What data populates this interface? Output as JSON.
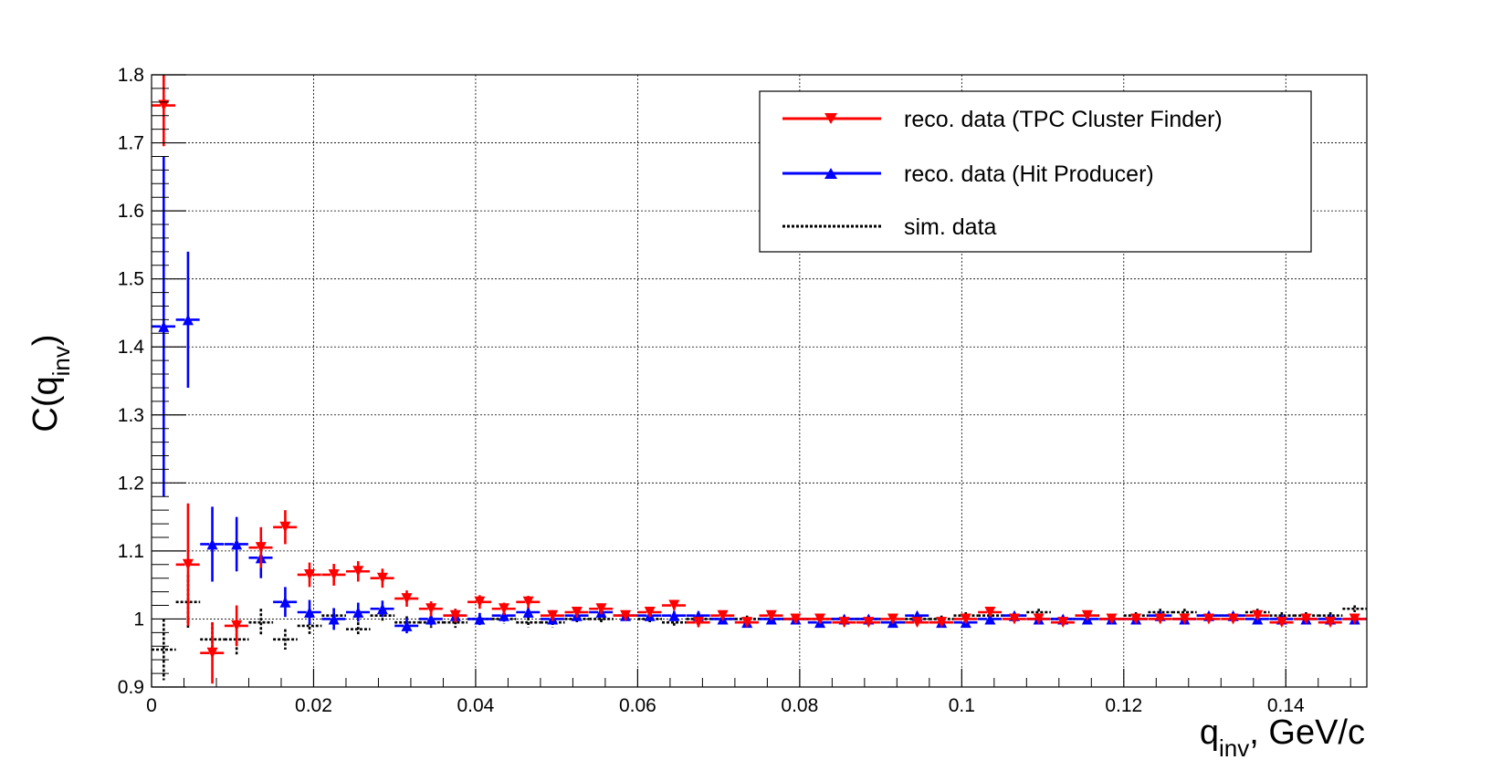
{
  "chart_data": {
    "type": "scatter",
    "xlabel": {
      "main": "q",
      "sub": "inv",
      "suffix": ", GeV/c"
    },
    "ylabel": {
      "main": "C(q",
      "sub": "inv",
      "suffix": ")"
    },
    "xlim": [
      0,
      0.15
    ],
    "ylim": [
      0.9,
      1.8
    ],
    "x_ticks": [
      "0",
      "0.02",
      "0.04",
      "0.06",
      "0.08",
      "0.1",
      "0.12",
      "0.14"
    ],
    "y_ticks": [
      "0.9",
      "1",
      "1.1",
      "1.2",
      "1.3",
      "1.4",
      "1.5",
      "1.6",
      "1.7",
      "1.8"
    ],
    "grid": true,
    "legend_position": "top-right",
    "bin_half_width": 0.0015,
    "series": [
      {
        "name": "reco. data (TPC Cluster Finder)",
        "color": "#ff0000",
        "marker": "triangle-down",
        "x": [
          0.0015,
          0.0045,
          0.0075,
          0.0105,
          0.0135,
          0.0165,
          0.0195,
          0.0225,
          0.0255,
          0.0285,
          0.0315,
          0.0345,
          0.0375,
          0.0405,
          0.0435,
          0.0465,
          0.0495,
          0.0525,
          0.0555,
          0.0585,
          0.0615,
          0.0645,
          0.0675,
          0.0705,
          0.0735,
          0.0765,
          0.0795,
          0.0825,
          0.0855,
          0.0885,
          0.0915,
          0.0945,
          0.0975,
          0.1005,
          0.1035,
          0.1065,
          0.1095,
          0.1125,
          0.1155,
          0.1185,
          0.1215,
          0.1245,
          0.1275,
          0.1305,
          0.1335,
          0.1365,
          0.1395,
          0.1425,
          0.1455,
          0.1485
        ],
        "y": [
          1.755,
          1.08,
          0.95,
          0.99,
          1.105,
          1.135,
          1.065,
          1.065,
          1.07,
          1.06,
          1.03,
          1.015,
          1.005,
          1.025,
          1.015,
          1.025,
          1.005,
          1.01,
          1.015,
          1.005,
          1.01,
          1.02,
          0.995,
          1.005,
          0.995,
          1.005,
          1.0,
          1.0,
          0.995,
          0.995,
          1.0,
          0.995,
          0.995,
          1.0,
          1.01,
          1.0,
          1.0,
          0.995,
          1.005,
          1.0,
          1.0,
          1.0,
          1.0,
          1.0,
          1.0,
          1.005,
          0.995,
          1.0,
          0.995,
          1.0
        ],
        "err": [
          0.06,
          0.09,
          0.045,
          0.03,
          0.03,
          0.025,
          0.018,
          0.016,
          0.015,
          0.014,
          0.012,
          0.011,
          0.01,
          0.01,
          0.009,
          0.009,
          0.008,
          0.008,
          0.008,
          0.007,
          0.007,
          0.007,
          0.007,
          0.006,
          0.006,
          0.006,
          0.006,
          0.006,
          0.006,
          0.005,
          0.005,
          0.005,
          0.005,
          0.005,
          0.005,
          0.005,
          0.005,
          0.005,
          0.005,
          0.005,
          0.005,
          0.005,
          0.005,
          0.005,
          0.005,
          0.005,
          0.005,
          0.005,
          0.005,
          0.005
        ]
      },
      {
        "name": "reco. data (Hit Producer)",
        "color": "#0000ff",
        "marker": "triangle-up",
        "x": [
          0.0015,
          0.0045,
          0.0075,
          0.0105,
          0.0135,
          0.0165,
          0.0195,
          0.0225,
          0.0255,
          0.0285,
          0.0315,
          0.0345,
          0.0375,
          0.0405,
          0.0435,
          0.0465,
          0.0495,
          0.0525,
          0.0555,
          0.0585,
          0.0615,
          0.0645,
          0.0675,
          0.0705,
          0.0735,
          0.0765,
          0.0795,
          0.0825,
          0.0855,
          0.0885,
          0.0915,
          0.0945,
          0.0975,
          0.1005,
          0.1035,
          0.1065,
          0.1095,
          0.1125,
          0.1155,
          0.1185,
          0.1215,
          0.1245,
          0.1275,
          0.1305,
          0.1335,
          0.1365,
          0.1395,
          0.1425,
          0.1455,
          0.1485
        ],
        "y": [
          1.43,
          1.44,
          1.11,
          1.11,
          1.09,
          1.025,
          1.01,
          1.0,
          1.01,
          1.015,
          0.99,
          1.0,
          1.005,
          1.0,
          1.005,
          1.01,
          1.0,
          1.005,
          1.01,
          1.005,
          1.005,
          1.005,
          1.005,
          1.0,
          0.995,
          1.0,
          1.0,
          0.995,
          1.0,
          1.0,
          0.995,
          1.005,
          0.995,
          0.995,
          1.0,
          1.005,
          1.0,
          1.0,
          1.0,
          1.0,
          1.0,
          1.005,
          1.0,
          1.005,
          1.005,
          1.0,
          1.0,
          1.0,
          1.0,
          1.0
        ],
        "err": [
          0.25,
          0.1,
          0.055,
          0.04,
          0.03,
          0.022,
          0.018,
          0.016,
          0.014,
          0.012,
          0.011,
          0.01,
          0.01,
          0.009,
          0.009,
          0.008,
          0.008,
          0.008,
          0.007,
          0.007,
          0.007,
          0.007,
          0.006,
          0.006,
          0.006,
          0.006,
          0.006,
          0.006,
          0.005,
          0.005,
          0.005,
          0.005,
          0.005,
          0.005,
          0.005,
          0.005,
          0.005,
          0.005,
          0.005,
          0.005,
          0.005,
          0.005,
          0.005,
          0.005,
          0.005,
          0.005,
          0.005,
          0.005,
          0.005,
          0.005
        ]
      },
      {
        "name": "sim. data",
        "color": "#000000",
        "marker": "none",
        "x": [
          0.0015,
          0.0045,
          0.0075,
          0.0105,
          0.0135,
          0.0165,
          0.0195,
          0.0225,
          0.0255,
          0.0285,
          0.0315,
          0.0345,
          0.0375,
          0.0405,
          0.0435,
          0.0465,
          0.0495,
          0.0525,
          0.0555,
          0.0585,
          0.0615,
          0.0645,
          0.0675,
          0.0705,
          0.0735,
          0.0765,
          0.0795,
          0.0825,
          0.0855,
          0.0885,
          0.0915,
          0.0945,
          0.0975,
          0.1005,
          0.1035,
          0.1065,
          0.1095,
          0.1125,
          0.1155,
          0.1185,
          0.1215,
          0.1245,
          0.1275,
          0.1305,
          0.1335,
          0.1365,
          0.1395,
          0.1425,
          0.1455,
          0.1485
        ],
        "y": [
          0.955,
          1.025,
          0.97,
          0.97,
          0.995,
          0.97,
          0.99,
          1.005,
          0.985,
          1.005,
          0.995,
          0.995,
          0.995,
          1.0,
          1.0,
          0.995,
          0.995,
          1.0,
          1.0,
          1.005,
          1.0,
          0.995,
          1.0,
          1.0,
          1.0,
          1.0,
          1.0,
          1.0,
          1.0,
          1.0,
          0.995,
          1.0,
          1.0,
          1.005,
          1.005,
          1.005,
          1.01,
          1.0,
          1.005,
          1.0,
          1.005,
          1.01,
          1.01,
          1.005,
          1.005,
          1.01,
          1.005,
          1.005,
          1.005,
          1.015
        ],
        "err": [
          0.045,
          0.04,
          0.025,
          0.022,
          0.02,
          0.015,
          0.012,
          0.011,
          0.01,
          0.01,
          0.009,
          0.008,
          0.008,
          0.008,
          0.007,
          0.007,
          0.007,
          0.006,
          0.006,
          0.006,
          0.006,
          0.006,
          0.005,
          0.005,
          0.005,
          0.005,
          0.005,
          0.005,
          0.005,
          0.005,
          0.005,
          0.005,
          0.005,
          0.005,
          0.005,
          0.005,
          0.005,
          0.005,
          0.005,
          0.005,
          0.005,
          0.005,
          0.005,
          0.005,
          0.005,
          0.005,
          0.005,
          0.005,
          0.005,
          0.005
        ]
      }
    ]
  }
}
